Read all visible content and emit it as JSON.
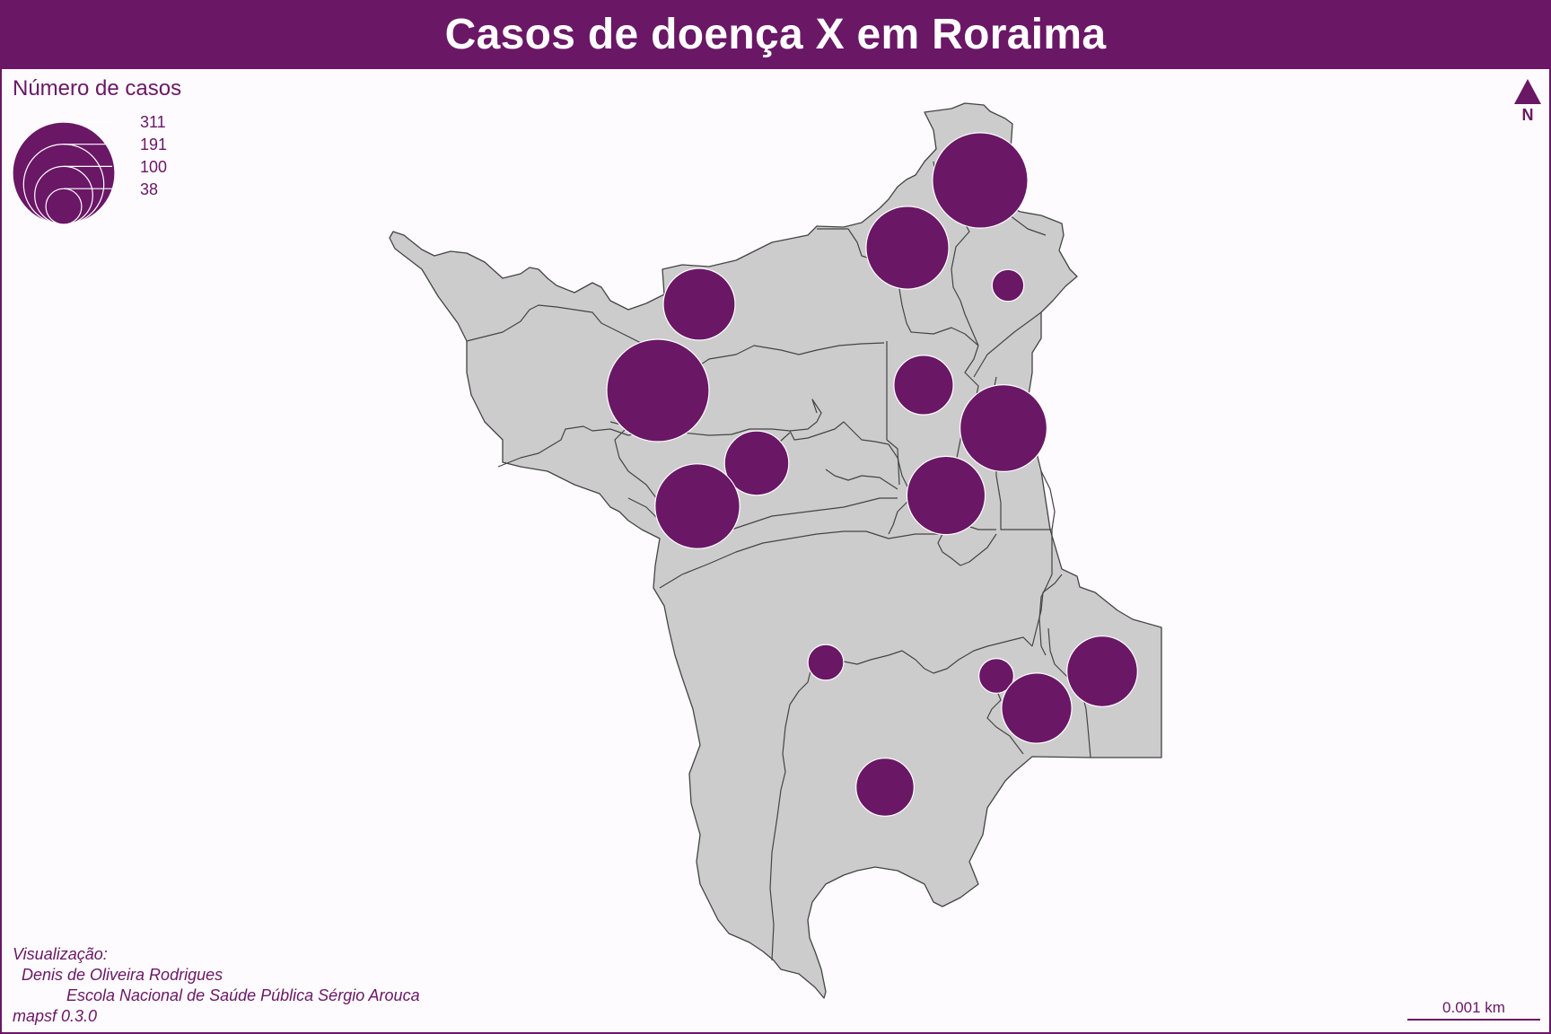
{
  "title": "Casos de doença X em Roraima",
  "legend": {
    "title": "Número de casos",
    "values": [
      "311",
      "191",
      "100",
      "38"
    ]
  },
  "north": {
    "label": "N",
    "icon": "north-arrow-icon"
  },
  "credits": {
    "line1": "Visualização:",
    "line2": "Denis de Oliveira Rodrigues",
    "line3": "Escola Nacional de Saúde Pública Sérgio Arouca",
    "line4": "mapsf 0.3.0"
  },
  "scale": {
    "label": "0.001 km"
  },
  "colors": {
    "accent": "#6a1766",
    "land": "#cccccc",
    "border": "#444444",
    "background": "#fdfbfd"
  },
  "chart_data": {
    "type": "proportional-symbol-map",
    "region": "Roraima",
    "legend_values": [
      311,
      191,
      100,
      38
    ],
    "symbols": [
      {
        "cases": 270
      },
      {
        "cases": 203
      },
      {
        "cases": 30
      },
      {
        "cases": 153
      },
      {
        "cases": 311
      },
      {
        "cases": 105
      },
      {
        "cases": 224
      },
      {
        "cases": 123
      },
      {
        "cases": 213
      },
      {
        "cases": 182
      },
      {
        "cases": 38
      },
      {
        "cases": 36
      },
      {
        "cases": 146
      },
      {
        "cases": 148
      },
      {
        "cases": 100
      }
    ]
  }
}
